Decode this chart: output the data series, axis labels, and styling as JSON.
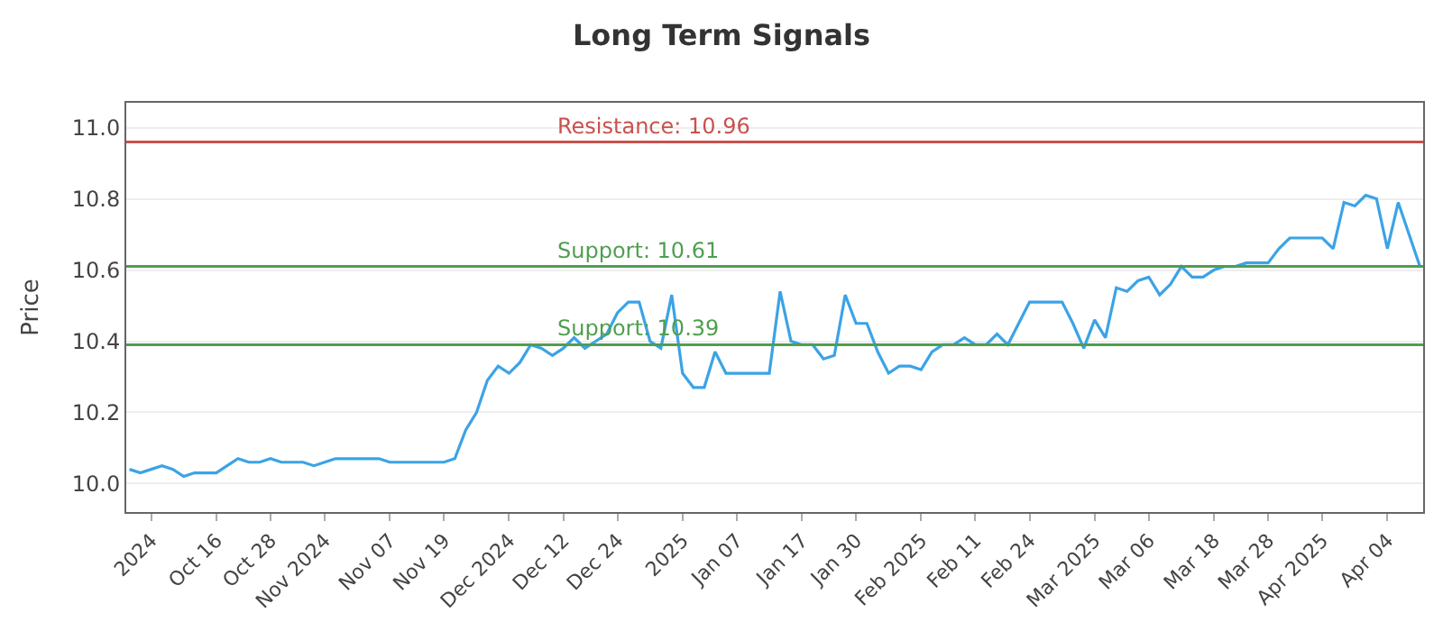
{
  "chart_data": {
    "type": "line",
    "title": "Long Term Signals",
    "ylabel": "Price",
    "categories": [
      null,
      null,
      "2024",
      null,
      null,
      null,
      null,
      null,
      "Oct 16",
      null,
      null,
      null,
      null,
      "Oct 28",
      null,
      null,
      null,
      null,
      "Nov 2024",
      null,
      null,
      null,
      null,
      null,
      "Nov 07",
      null,
      null,
      null,
      null,
      "Nov 19",
      null,
      null,
      null,
      null,
      null,
      "Dec 2024",
      null,
      null,
      null,
      null,
      "Dec 12",
      null,
      null,
      null,
      null,
      "Dec 24",
      null,
      null,
      null,
      null,
      null,
      "2025",
      null,
      null,
      null,
      null,
      "Jan 07",
      null,
      null,
      null,
      null,
      null,
      "Jan 17",
      null,
      null,
      null,
      null,
      "Jan 30",
      null,
      null,
      null,
      null,
      null,
      "Feb 2025",
      null,
      null,
      null,
      null,
      "Feb 11",
      null,
      null,
      null,
      null,
      "Feb 24",
      null,
      null,
      null,
      null,
      null,
      "Mar 2025",
      null,
      null,
      null,
      null,
      "Mar 06",
      null,
      null,
      null,
      null,
      null,
      "Mar 18",
      null,
      null,
      null,
      null,
      "Mar 28",
      null,
      null,
      null,
      null,
      "Apr 2025",
      null,
      null,
      null,
      null,
      null,
      "Apr 04",
      null,
      null,
      null
    ],
    "series": [
      {
        "color": "#3ba3e6",
        "values": [
          10.04,
          10.03,
          10.04,
          10.05,
          10.04,
          10.02,
          10.03,
          10.03,
          10.03,
          10.05,
          10.07,
          10.06,
          10.06,
          10.07,
          10.06,
          10.06,
          10.06,
          10.05,
          10.06,
          10.07,
          10.07,
          10.07,
          10.07,
          10.07,
          10.06,
          10.06,
          10.06,
          10.06,
          10.06,
          10.06,
          10.07,
          10.15,
          10.2,
          10.29,
          10.33,
          10.31,
          10.34,
          10.39,
          10.38,
          10.36,
          10.38,
          10.41,
          10.38,
          10.4,
          10.42,
          10.48,
          10.51,
          10.51,
          10.4,
          10.38,
          10.53,
          10.31,
          10.27,
          10.27,
          10.37,
          10.31,
          10.31,
          10.31,
          10.31,
          10.31,
          10.54,
          10.4,
          10.39,
          10.39,
          10.35,
          10.36,
          10.53,
          10.45,
          10.45,
          10.37,
          10.31,
          10.33,
          10.33,
          10.32,
          10.37,
          10.39,
          10.39,
          10.41,
          10.39,
          10.39,
          10.42,
          10.39,
          10.45,
          10.51,
          10.51,
          10.51,
          10.51,
          10.45,
          10.38,
          10.46,
          10.41,
          10.55,
          10.54,
          10.57,
          10.58,
          10.53,
          10.56,
          10.61,
          10.58,
          10.58,
          10.6,
          10.61,
          10.61,
          10.62,
          10.62,
          10.62,
          10.66,
          10.69,
          10.69,
          10.69,
          10.69,
          10.66,
          10.79,
          10.78,
          10.81,
          10.8,
          10.66,
          10.79,
          10.7,
          10.61
        ]
      }
    ],
    "ylim": [
      9.92,
      11.07
    ],
    "yticks": [
      {
        "value": 10,
        "label": "10.0"
      },
      {
        "value": 10.2,
        "label": "10.2"
      },
      {
        "value": 10.4,
        "label": "10.4"
      },
      {
        "value": 10.6,
        "label": "10.6"
      },
      {
        "value": 10.8,
        "label": "10.8"
      },
      {
        "value": 11,
        "label": "11.0"
      }
    ],
    "ref_lines": [
      {
        "axis": "y",
        "value": 10.96,
        "label": "Resistance: 10.96",
        "color": "#c9504c"
      },
      {
        "axis": "y",
        "value": 10.61,
        "label": "Support: 10.61",
        "color": "#4f9e4f"
      },
      {
        "axis": "y",
        "value": 10.39,
        "label": "Support: 10.39",
        "color": "#4f9e4f"
      }
    ],
    "grid": "y",
    "marker": "none",
    "line_style": "solid"
  }
}
